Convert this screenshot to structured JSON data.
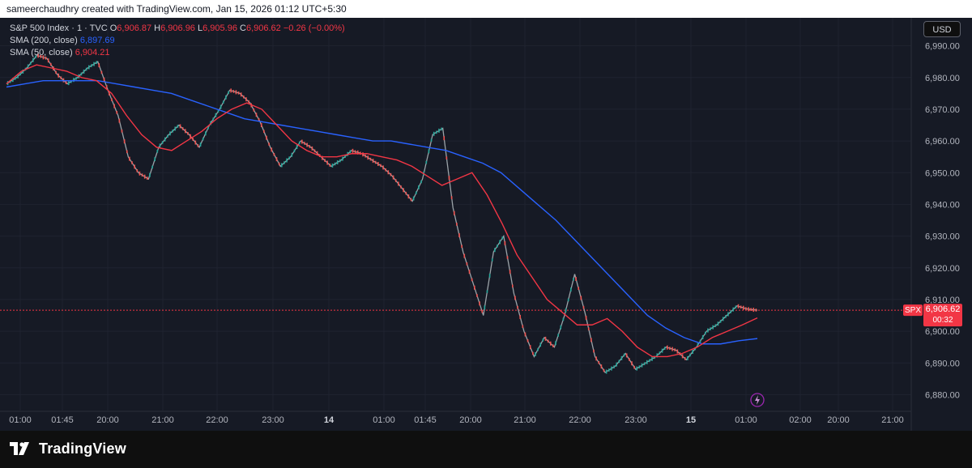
{
  "header": {
    "attribution": "sameerchaudhry created with TradingView.com, Jan 15, 2026 01:12 UTC+5:30"
  },
  "legend": {
    "title": "S&P 500 Index · 1 · TVC",
    "ohlc": [
      {
        "key": "O",
        "value": "6,906.87"
      },
      {
        "key": "H",
        "value": "6,906.96"
      },
      {
        "key": "L",
        "value": "6,905.96"
      },
      {
        "key": "C",
        "value": "6,906.62"
      }
    ],
    "change": "−0.26 (−0.00%)",
    "sma200_label": "SMA (200, close)",
    "sma200_value": "6,897.69",
    "sma50_label": "SMA (50, close)",
    "sma50_value": "6,904.21"
  },
  "currency_button": "USD",
  "price_badge": {
    "symbol": "SPX",
    "price": "6,906.62",
    "countdown": "00:32"
  },
  "brand": {
    "name": "TradingView"
  },
  "colors": {
    "up": "#26a69a",
    "down": "#ef5350",
    "sma200": "#2962ff",
    "sma50": "#f23645"
  },
  "chart_data": {
    "type": "line",
    "title": "S&P 500 Index",
    "interval": "1",
    "ylim": [
      6875,
      6995
    ],
    "y_ticks": [
      6880,
      6890,
      6900,
      6910,
      6920,
      6930,
      6940,
      6950,
      6960,
      6970,
      6980,
      6990
    ],
    "y_tick_labels": [
      "6,880.00",
      "6,890.00",
      "6,900.00",
      "6,910.00",
      "6,920.00",
      "6,930.00",
      "6,940.00",
      "6,950.00",
      "6,960.00",
      "6,970.00",
      "6,980.00",
      "6,990.00"
    ],
    "x_tick_labels": [
      "01:00",
      "01:45",
      "20:00",
      "21:00",
      "22:00",
      "23:00",
      "14",
      "01:00",
      "01:45",
      "20:00",
      "21:00",
      "22:00",
      "23:00",
      "15",
      "01:00",
      "02:00",
      "20:00",
      "21:00"
    ],
    "last_price": 6906.62,
    "grid": true,
    "series": [
      {
        "name": "SPX",
        "values": [
          6978,
          6980,
          6983,
          6987,
          6986,
          6981,
          6978,
          6980,
          6983,
          6985,
          6976,
          6968,
          6955,
          6950,
          6948,
          6958,
          6962,
          6965,
          6962,
          6958,
          6965,
          6970,
          6976,
          6975,
          6972,
          6966,
          6958,
          6952,
          6955,
          6960,
          6958,
          6955,
          6952,
          6954,
          6957,
          6956,
          6954,
          6952,
          6949,
          6945,
          6941,
          6948,
          6962,
          6964,
          6939,
          6925,
          6915,
          6905,
          6925,
          6930,
          6912,
          6900,
          6892,
          6898,
          6895,
          6905,
          6918,
          6906,
          6892,
          6887,
          6889,
          6893,
          6888,
          6890,
          6892,
          6895,
          6894,
          6891,
          6895,
          6900,
          6902,
          6905,
          6908,
          6907,
          6906.62
        ]
      },
      {
        "name": "SMA (200, close)",
        "values": [
          6977,
          6978,
          6979,
          6979,
          6979,
          6979,
          6978,
          6977,
          6976,
          6975,
          6973,
          6971,
          6969,
          6967,
          6966,
          6965,
          6964,
          6963,
          6962,
          6961,
          6960,
          6960,
          6959,
          6958,
          6957,
          6955,
          6953,
          6950,
          6945,
          6940,
          6935,
          6929,
          6923,
          6917,
          6911,
          6905,
          6901,
          6898,
          6896,
          6896,
          6897,
          6897.69
        ]
      },
      {
        "name": "SMA (50, close)",
        "values": [
          6978,
          6982,
          6984,
          6983,
          6982,
          6980,
          6979,
          6975,
          6968,
          6962,
          6958,
          6957,
          6960,
          6963,
          6967,
          6970,
          6972,
          6970,
          6965,
          6960,
          6957,
          6955,
          6955,
          6956,
          6956,
          6955,
          6954,
          6952,
          6949,
          6946,
          6948,
          6950,
          6943,
          6934,
          6924,
          6917,
          6910,
          6906,
          6902,
          6902,
          6904,
          6900,
          6895,
          6892,
          6892,
          6893,
          6895,
          6898,
          6900,
          6902,
          6904.21
        ]
      }
    ]
  }
}
